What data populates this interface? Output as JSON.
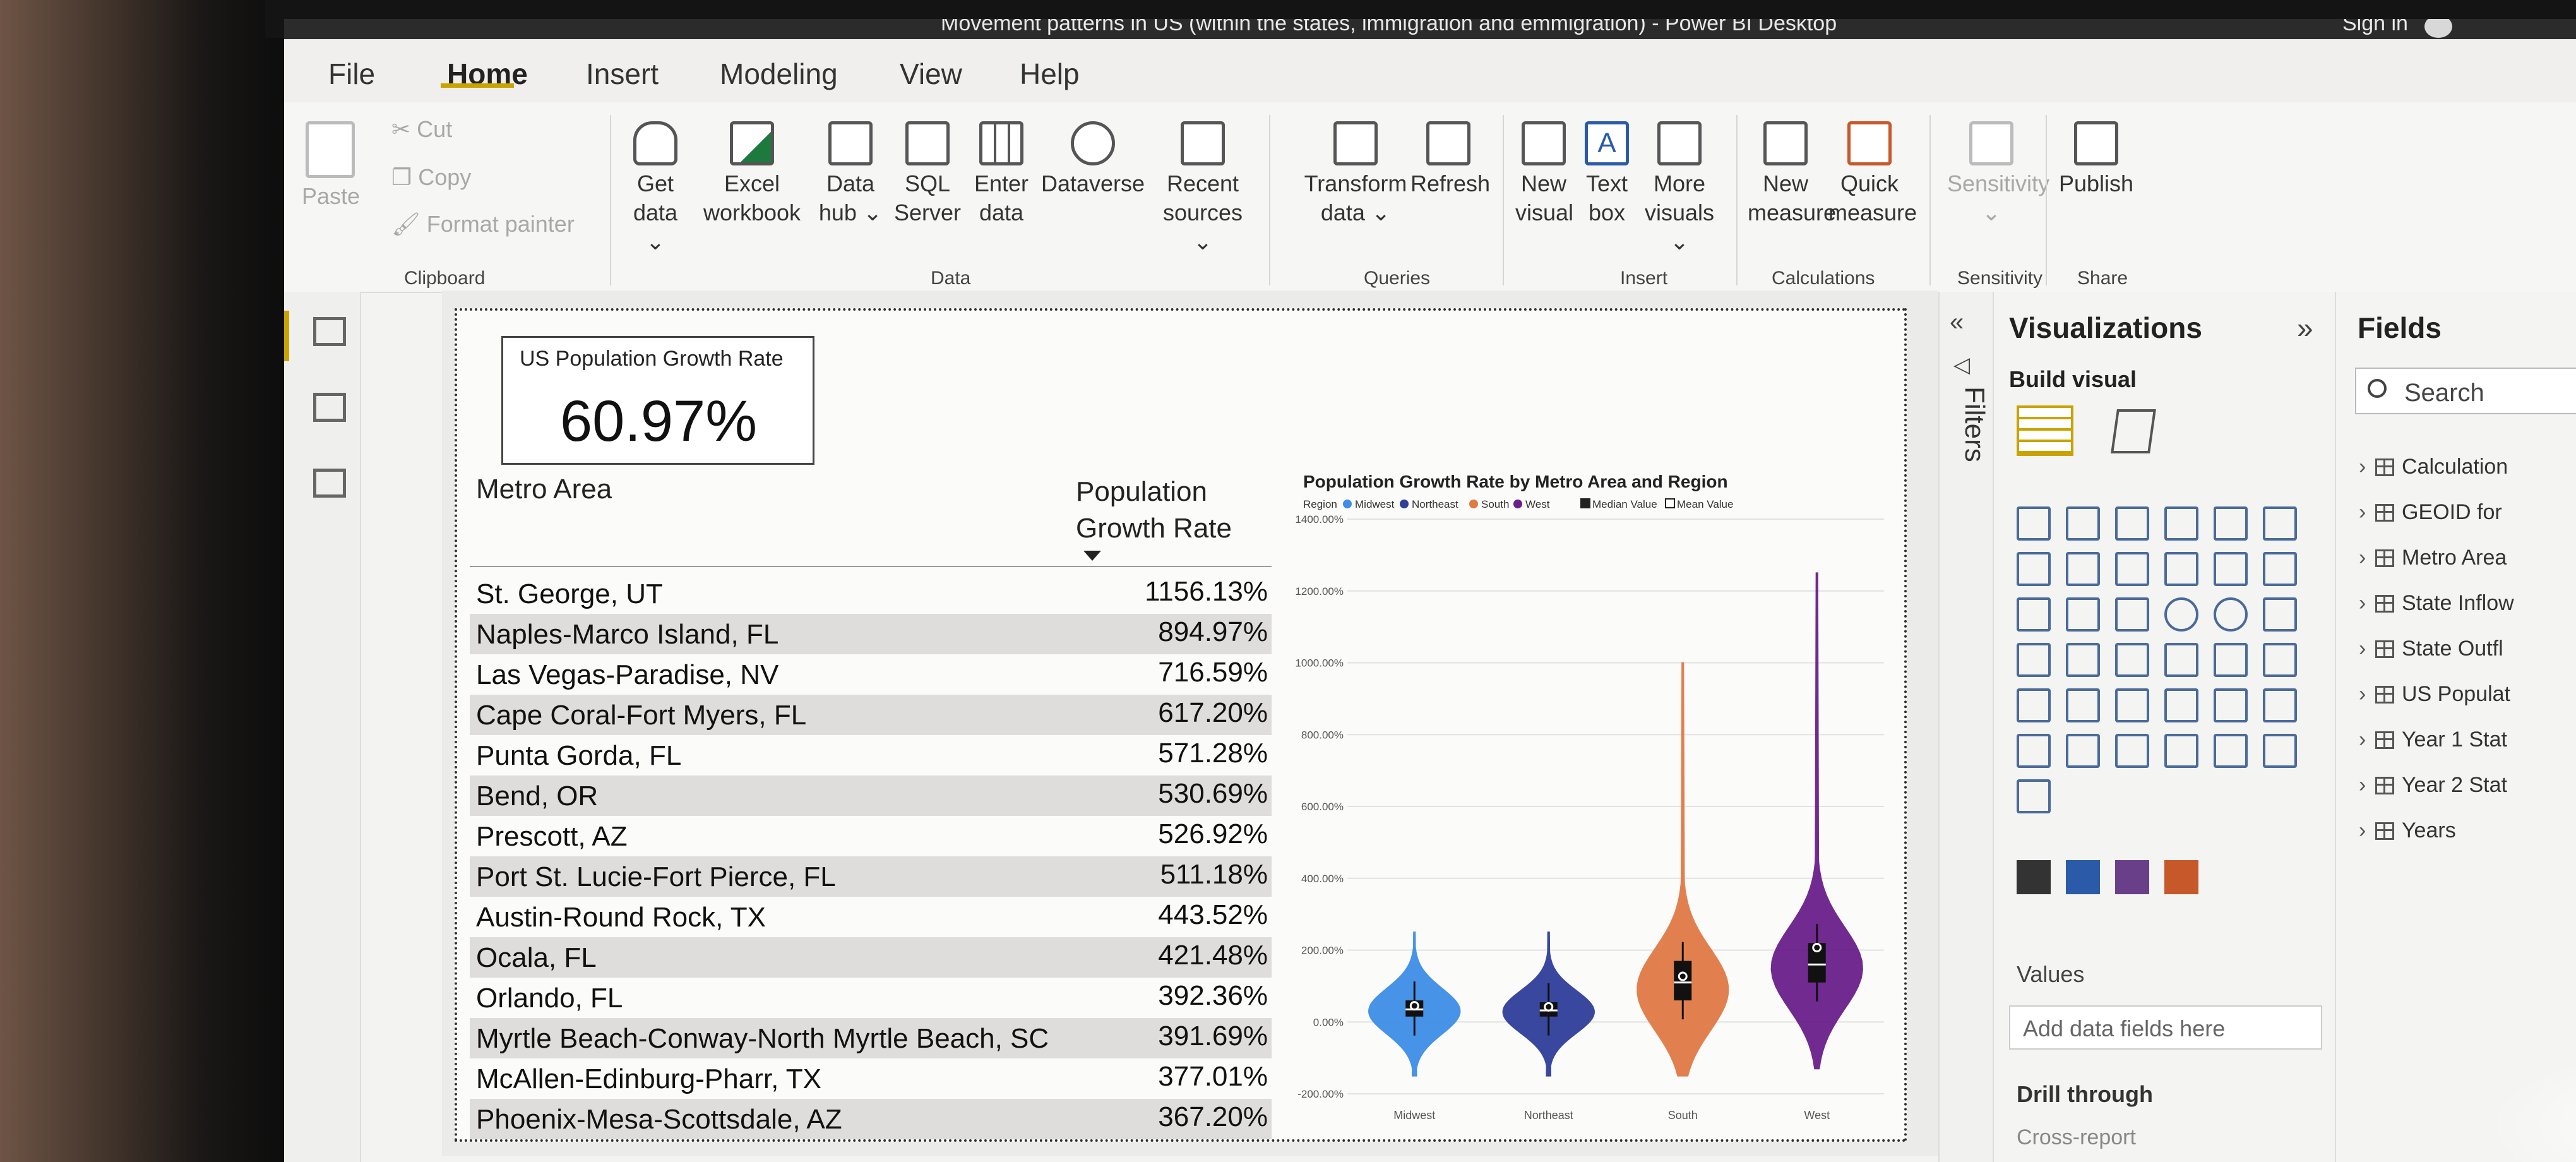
{
  "window": {
    "title": "Movement patterns in US (within the states, immigration and emmigration) - Power BI Desktop",
    "sign_in": "Sign in"
  },
  "menu": [
    "File",
    "Home",
    "Insert",
    "Modeling",
    "View",
    "Help"
  ],
  "ribbon": {
    "clipboard": {
      "paste": "Paste",
      "cut": "Cut",
      "copy": "Copy",
      "format_painter": "Format painter",
      "group": "Clipboard"
    },
    "data": {
      "get_data": [
        "Get",
        "data"
      ],
      "excel": [
        "Excel",
        "workbook"
      ],
      "data_hub": [
        "Data",
        "hub"
      ],
      "sql": [
        "SQL",
        "Server"
      ],
      "enter": [
        "Enter",
        "data"
      ],
      "dataverse": "Dataverse",
      "recent": [
        "Recent",
        "sources"
      ],
      "group": "Data"
    },
    "queries": {
      "transform": [
        "Transform",
        "data"
      ],
      "refresh": "Refresh",
      "group": "Queries"
    },
    "insert": {
      "new_visual": [
        "New",
        "visual"
      ],
      "text_box": [
        "Text",
        "box"
      ],
      "more_visuals": [
        "More",
        "visuals"
      ],
      "group": "Insert"
    },
    "calculations": {
      "new_measure": [
        "New",
        "measure"
      ],
      "quick_measure": [
        "Quick",
        "measure"
      ],
      "group": "Calculations"
    },
    "sensitivity": {
      "label": "Sensitivity",
      "group": "Sensitivity"
    },
    "share": {
      "publish": "Publish",
      "group": "Share"
    }
  },
  "card": {
    "title": "US Population Growth Rate",
    "value": "60.97%"
  },
  "table": {
    "col1": "Metro Area",
    "col2": [
      "Population",
      "Growth Rate"
    ],
    "rows": [
      [
        "St. George, UT",
        "1156.13%"
      ],
      [
        "Naples-Marco Island, FL",
        "894.97%"
      ],
      [
        "Las Vegas-Paradise, NV",
        "716.59%"
      ],
      [
        "Cape Coral-Fort Myers, FL",
        "617.20%"
      ],
      [
        "Punta Gorda, FL",
        "571.28%"
      ],
      [
        "Bend, OR",
        "530.69%"
      ],
      [
        "Prescott, AZ",
        "526.92%"
      ],
      [
        "Port St. Lucie-Fort Pierce, FL",
        "511.18%"
      ],
      [
        "Austin-Round Rock, TX",
        "443.52%"
      ],
      [
        "Ocala, FL",
        "421.48%"
      ],
      [
        "Orlando, FL",
        "392.36%"
      ],
      [
        "Myrtle Beach-Conway-North Myrtle Beach, SC",
        "391.69%"
      ],
      [
        "McAllen-Edinburg-Pharr, TX",
        "377.01%"
      ],
      [
        "Phoenix-Mesa-Scottsdale, AZ",
        "367.20%"
      ]
    ]
  },
  "chart_data": {
    "type": "violin",
    "title": "Population Growth Rate by Metro Area and Region",
    "legend_title": "Region",
    "legend_extra": [
      "Median Value",
      "Mean Value"
    ],
    "categories": [
      "Midwest",
      "Northeast",
      "South",
      "West"
    ],
    "colors": [
      "#3d8ee6",
      "#2f3f9a",
      "#e07a45",
      "#6a1f8a"
    ],
    "y_ticks": [
      "1400.00%",
      "1200.00%",
      "1000.00%",
      "800.00%",
      "600.00%",
      "400.00%",
      "200.00%",
      "0.00%",
      "-200.00%"
    ],
    "ylim": [
      -200,
      1400
    ],
    "series": [
      {
        "name": "Midwest",
        "min": -150,
        "max": 250,
        "q1": 15,
        "q3": 60,
        "median": 35,
        "mean": 38,
        "peak": 30
      },
      {
        "name": "Northeast",
        "min": -150,
        "max": 250,
        "q1": 15,
        "q3": 55,
        "median": 32,
        "mean": 35,
        "peak": 28
      },
      {
        "name": "South",
        "min": -150,
        "max": 1000,
        "q1": 60,
        "q3": 170,
        "median": 110,
        "mean": 120,
        "peak": 90
      },
      {
        "name": "West",
        "min": -130,
        "max": 1250,
        "q1": 110,
        "q3": 220,
        "median": 160,
        "mean": 200,
        "peak": 150
      }
    ]
  },
  "filters_label": "Filters",
  "visualizations": {
    "title": "Visualizations",
    "build_visual": "Build visual",
    "values": "Values",
    "add_fields": "Add data fields here",
    "drill_through": "Drill through",
    "cross_report": "Cross-report"
  },
  "fields": {
    "title": "Fields",
    "search_placeholder": "Search",
    "items": [
      "Calculation",
      "GEOID for",
      "Metro Area",
      "State Inflow",
      "State Outfl",
      "US Populat",
      "Year 1 Stat",
      "Year 2 Stat",
      "Years"
    ]
  }
}
